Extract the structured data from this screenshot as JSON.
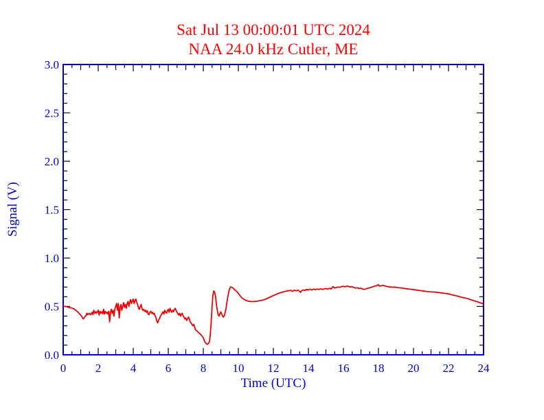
{
  "page": {
    "background": "#ffffff"
  },
  "header": {
    "title": "Sat Jul 13 00:00:01 UTC 2024",
    "subtitle": "NAA 24.0 kHz Cutler, ME"
  },
  "colors": {
    "title_text": "#ff0000",
    "trace": "#ee0000",
    "axis_frame": "#0000cc",
    "axis_labels": "#0000cc",
    "tick_marks": "#000000",
    "background": "#ffffff"
  },
  "chart_data": {
    "type": "line",
    "title": "Sat Jul 13 00:00:01 UTC 2024",
    "subtitle": "NAA 24.0 kHz Cutler, ME",
    "xlabel": "Time (UTC)",
    "ylabel": "Signal (V)",
    "xlim": [
      0,
      24
    ],
    "ylim": [
      0.0,
      3.0
    ],
    "grid": false,
    "legend": "none",
    "x_major_tick_labels": [
      "0",
      "2",
      "4",
      "6",
      "8",
      "10",
      "12",
      "14",
      "16",
      "18",
      "20",
      "22",
      "24"
    ],
    "x_major_tick_values": [
      0,
      2,
      4,
      6,
      8,
      10,
      12,
      14,
      16,
      18,
      20,
      22,
      24
    ],
    "x_mid_tick_step": 1,
    "x_minor_tick_step": 0.5,
    "y_major_tick_labels": [
      "0.0",
      "0.5",
      "1.0",
      "1.5",
      "2.0",
      "2.5",
      "3.0"
    ],
    "y_major_tick_values": [
      0.0,
      0.5,
      1.0,
      1.5,
      2.0,
      2.5,
      3.0
    ],
    "y_minor_tick_step": 0.1,
    "series": [
      {
        "name": "NAA 24.0 kHz signal",
        "color": "#ee0000",
        "points": [
          [
            0.0,
            0.5
          ],
          [
            0.15,
            0.5
          ],
          [
            0.3,
            0.49
          ],
          [
            0.45,
            0.485
          ],
          [
            0.55,
            0.48
          ],
          [
            0.65,
            0.47
          ],
          [
            0.75,
            0.455
          ],
          [
            0.85,
            0.44
          ],
          [
            0.95,
            0.42
          ],
          [
            1.05,
            0.4
          ],
          [
            1.1,
            0.38
          ],
          [
            1.15,
            0.37
          ],
          [
            1.2,
            0.385
          ],
          [
            1.3,
            0.405
          ],
          [
            1.35,
            0.43
          ],
          [
            1.4,
            0.415
          ],
          [
            1.5,
            0.43
          ],
          [
            1.55,
            0.415
          ],
          [
            1.6,
            0.42
          ],
          [
            1.65,
            0.44
          ],
          [
            1.7,
            0.415
          ],
          [
            1.75,
            0.46
          ],
          [
            1.8,
            0.43
          ],
          [
            1.85,
            0.445
          ],
          [
            1.9,
            0.43
          ],
          [
            1.95,
            0.445
          ],
          [
            2.0,
            0.46
          ],
          [
            2.05,
            0.41
          ],
          [
            2.1,
            0.45
          ],
          [
            2.15,
            0.43
          ],
          [
            2.2,
            0.445
          ],
          [
            2.25,
            0.425
          ],
          [
            2.3,
            0.47
          ],
          [
            2.35,
            0.42
          ],
          [
            2.4,
            0.45
          ],
          [
            2.45,
            0.43
          ],
          [
            2.5,
            0.44
          ],
          [
            2.55,
            0.42
          ],
          [
            2.6,
            0.45
          ],
          [
            2.65,
            0.34
          ],
          [
            2.7,
            0.44
          ],
          [
            2.75,
            0.47
          ],
          [
            2.8,
            0.43
          ],
          [
            2.85,
            0.46
          ],
          [
            2.9,
            0.4
          ],
          [
            2.95,
            0.47
          ],
          [
            3.0,
            0.5
          ],
          [
            3.05,
            0.53
          ],
          [
            3.1,
            0.46
          ],
          [
            3.15,
            0.53
          ],
          [
            3.2,
            0.38
          ],
          [
            3.25,
            0.49
          ],
          [
            3.3,
            0.52
          ],
          [
            3.35,
            0.46
          ],
          [
            3.4,
            0.5
          ],
          [
            3.45,
            0.54
          ],
          [
            3.5,
            0.49
          ],
          [
            3.55,
            0.52
          ],
          [
            3.6,
            0.48
          ],
          [
            3.65,
            0.53
          ],
          [
            3.7,
            0.55
          ],
          [
            3.75,
            0.5
          ],
          [
            3.8,
            0.545
          ],
          [
            3.85,
            0.57
          ],
          [
            3.9,
            0.53
          ],
          [
            3.95,
            0.555
          ],
          [
            4.0,
            0.575
          ],
          [
            4.05,
            0.53
          ],
          [
            4.1,
            0.56
          ],
          [
            4.15,
            0.575
          ],
          [
            4.2,
            0.54
          ],
          [
            4.25,
            0.52
          ],
          [
            4.3,
            0.48
          ],
          [
            4.35,
            0.47
          ],
          [
            4.4,
            0.5
          ],
          [
            4.45,
            0.52
          ],
          [
            4.5,
            0.475
          ],
          [
            4.55,
            0.46
          ],
          [
            4.6,
            0.47
          ],
          [
            4.65,
            0.45
          ],
          [
            4.7,
            0.46
          ],
          [
            4.75,
            0.44
          ],
          [
            4.8,
            0.455
          ],
          [
            4.85,
            0.42
          ],
          [
            4.9,
            0.415
          ],
          [
            4.95,
            0.44
          ],
          [
            5.0,
            0.45
          ],
          [
            5.05,
            0.43
          ],
          [
            5.1,
            0.44
          ],
          [
            5.15,
            0.42
          ],
          [
            5.2,
            0.43
          ],
          [
            5.25,
            0.4
          ],
          [
            5.3,
            0.38
          ],
          [
            5.35,
            0.345
          ],
          [
            5.4,
            0.33
          ],
          [
            5.45,
            0.36
          ],
          [
            5.5,
            0.375
          ],
          [
            5.55,
            0.4
          ],
          [
            5.6,
            0.41
          ],
          [
            5.65,
            0.43
          ],
          [
            5.7,
            0.445
          ],
          [
            5.75,
            0.42
          ],
          [
            5.8,
            0.46
          ],
          [
            5.85,
            0.44
          ],
          [
            5.9,
            0.43
          ],
          [
            5.95,
            0.455
          ],
          [
            6.0,
            0.47
          ],
          [
            6.05,
            0.44
          ],
          [
            6.1,
            0.48
          ],
          [
            6.15,
            0.455
          ],
          [
            6.2,
            0.44
          ],
          [
            6.25,
            0.46
          ],
          [
            6.3,
            0.445
          ],
          [
            6.35,
            0.47
          ],
          [
            6.4,
            0.48
          ],
          [
            6.45,
            0.455
          ],
          [
            6.5,
            0.44
          ],
          [
            6.55,
            0.425
          ],
          [
            6.6,
            0.41
          ],
          [
            6.65,
            0.43
          ],
          [
            6.7,
            0.4
          ],
          [
            6.75,
            0.42
          ],
          [
            6.8,
            0.43
          ],
          [
            6.85,
            0.4
          ],
          [
            6.9,
            0.39
          ],
          [
            6.95,
            0.37
          ],
          [
            7.0,
            0.38
          ],
          [
            7.05,
            0.355
          ],
          [
            7.1,
            0.37
          ],
          [
            7.15,
            0.39
          ],
          [
            7.2,
            0.375
          ],
          [
            7.25,
            0.34
          ],
          [
            7.3,
            0.33
          ],
          [
            7.35,
            0.315
          ],
          [
            7.4,
            0.3
          ],
          [
            7.45,
            0.315
          ],
          [
            7.5,
            0.29
          ],
          [
            7.55,
            0.26
          ],
          [
            7.6,
            0.25
          ],
          [
            7.65,
            0.245
          ],
          [
            7.7,
            0.235
          ],
          [
            7.75,
            0.225
          ],
          [
            7.8,
            0.22
          ],
          [
            7.85,
            0.21
          ],
          [
            7.9,
            0.2
          ],
          [
            7.95,
            0.19
          ],
          [
            8.0,
            0.175
          ],
          [
            8.05,
            0.15
          ],
          [
            8.1,
            0.13
          ],
          [
            8.15,
            0.12
          ],
          [
            8.2,
            0.11
          ],
          [
            8.25,
            0.11
          ],
          [
            8.3,
            0.12
          ],
          [
            8.35,
            0.135
          ],
          [
            8.4,
            0.21
          ],
          [
            8.45,
            0.34
          ],
          [
            8.5,
            0.5
          ],
          [
            8.55,
            0.62
          ],
          [
            8.6,
            0.66
          ],
          [
            8.65,
            0.645
          ],
          [
            8.7,
            0.6
          ],
          [
            8.75,
            0.52
          ],
          [
            8.8,
            0.46
          ],
          [
            8.85,
            0.41
          ],
          [
            8.9,
            0.4
          ],
          [
            8.95,
            0.425
          ],
          [
            9.0,
            0.445
          ],
          [
            9.05,
            0.42
          ],
          [
            9.1,
            0.4
          ],
          [
            9.15,
            0.39
          ],
          [
            9.2,
            0.405
          ],
          [
            9.25,
            0.44
          ],
          [
            9.3,
            0.48
          ],
          [
            9.35,
            0.545
          ],
          [
            9.4,
            0.6
          ],
          [
            9.45,
            0.65
          ],
          [
            9.5,
            0.68
          ],
          [
            9.55,
            0.7
          ],
          [
            9.6,
            0.7
          ],
          [
            9.7,
            0.69
          ],
          [
            9.8,
            0.67
          ],
          [
            9.9,
            0.655
          ],
          [
            10.0,
            0.635
          ],
          [
            10.1,
            0.61
          ],
          [
            10.2,
            0.59
          ],
          [
            10.3,
            0.575
          ],
          [
            10.4,
            0.565
          ],
          [
            10.5,
            0.558
          ],
          [
            10.6,
            0.552
          ],
          [
            10.8,
            0.55
          ],
          [
            11.0,
            0.552
          ],
          [
            11.2,
            0.558
          ],
          [
            11.4,
            0.565
          ],
          [
            11.6,
            0.578
          ],
          [
            11.8,
            0.595
          ],
          [
            12.0,
            0.612
          ],
          [
            12.2,
            0.628
          ],
          [
            12.4,
            0.642
          ],
          [
            12.6,
            0.652
          ],
          [
            12.8,
            0.66
          ],
          [
            13.0,
            0.665
          ],
          [
            13.1,
            0.655
          ],
          [
            13.2,
            0.668
          ],
          [
            13.3,
            0.66
          ],
          [
            13.4,
            0.668
          ],
          [
            13.5,
            0.655
          ],
          [
            13.55,
            0.645
          ],
          [
            13.6,
            0.66
          ],
          [
            13.7,
            0.67
          ],
          [
            13.8,
            0.665
          ],
          [
            13.9,
            0.675
          ],
          [
            14.0,
            0.67
          ],
          [
            14.1,
            0.678
          ],
          [
            14.2,
            0.67
          ],
          [
            14.3,
            0.68
          ],
          [
            14.4,
            0.672
          ],
          [
            14.5,
            0.68
          ],
          [
            14.6,
            0.675
          ],
          [
            14.7,
            0.682
          ],
          [
            14.8,
            0.675
          ],
          [
            14.9,
            0.68
          ],
          [
            15.0,
            0.685
          ],
          [
            15.1,
            0.678
          ],
          [
            15.2,
            0.688
          ],
          [
            15.3,
            0.68
          ],
          [
            15.4,
            0.705
          ],
          [
            15.5,
            0.69
          ],
          [
            15.6,
            0.695
          ],
          [
            15.7,
            0.7
          ],
          [
            15.8,
            0.698
          ],
          [
            15.9,
            0.705
          ],
          [
            16.0,
            0.708
          ],
          [
            16.1,
            0.702
          ],
          [
            16.2,
            0.712
          ],
          [
            16.3,
            0.705
          ],
          [
            16.4,
            0.7
          ],
          [
            16.5,
            0.705
          ],
          [
            16.6,
            0.695
          ],
          [
            16.7,
            0.69
          ],
          [
            16.8,
            0.692
          ],
          [
            16.9,
            0.685
          ],
          [
            17.0,
            0.688
          ],
          [
            17.1,
            0.68
          ],
          [
            17.2,
            0.676
          ],
          [
            17.3,
            0.682
          ],
          [
            17.4,
            0.688
          ],
          [
            17.5,
            0.692
          ],
          [
            17.6,
            0.698
          ],
          [
            17.7,
            0.704
          ],
          [
            17.8,
            0.71
          ],
          [
            17.9,
            0.715
          ],
          [
            18.0,
            0.725
          ],
          [
            18.05,
            0.71
          ],
          [
            18.1,
            0.712
          ],
          [
            18.2,
            0.715
          ],
          [
            18.3,
            0.716
          ],
          [
            18.4,
            0.71
          ],
          [
            18.5,
            0.706
          ],
          [
            18.6,
            0.7
          ],
          [
            18.7,
            0.702
          ],
          [
            18.8,
            0.698
          ],
          [
            18.9,
            0.7
          ],
          [
            19.0,
            0.698
          ],
          [
            19.1,
            0.694
          ],
          [
            19.2,
            0.692
          ],
          [
            19.3,
            0.69
          ],
          [
            19.4,
            0.688
          ],
          [
            19.5,
            0.685
          ],
          [
            19.6,
            0.682
          ],
          [
            19.7,
            0.68
          ],
          [
            19.8,
            0.678
          ],
          [
            19.9,
            0.676
          ],
          [
            20.0,
            0.674
          ],
          [
            20.2,
            0.668
          ],
          [
            20.4,
            0.663
          ],
          [
            20.6,
            0.658
          ],
          [
            20.8,
            0.653
          ],
          [
            21.0,
            0.65
          ],
          [
            21.2,
            0.648
          ],
          [
            21.4,
            0.644
          ],
          [
            21.6,
            0.64
          ],
          [
            21.8,
            0.635
          ],
          [
            22.0,
            0.63
          ],
          [
            22.2,
            0.62
          ],
          [
            22.4,
            0.612
          ],
          [
            22.6,
            0.602
          ],
          [
            22.8,
            0.592
          ],
          [
            23.0,
            0.585
          ],
          [
            23.1,
            0.58
          ],
          [
            23.2,
            0.574
          ],
          [
            23.3,
            0.568
          ],
          [
            23.4,
            0.562
          ],
          [
            23.5,
            0.555
          ],
          [
            23.6,
            0.55
          ],
          [
            23.7,
            0.545
          ],
          [
            23.8,
            0.538
          ],
          [
            23.9,
            0.532
          ],
          [
            24.0,
            0.525
          ]
        ]
      }
    ]
  }
}
